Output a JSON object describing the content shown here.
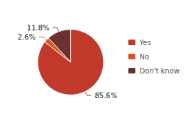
{
  "chart_data": {
    "type": "pie",
    "categories": [
      "Yes",
      "No",
      "Don't know"
    ],
    "values": [
      85.6,
      2.6,
      11.8
    ],
    "value_labels": [
      "85.6%",
      "2.6%",
      "11.8%"
    ],
    "colors": [
      "#c0392b",
      "#e05020",
      "#6b3030"
    ],
    "data_labels": true,
    "legend": "right"
  }
}
